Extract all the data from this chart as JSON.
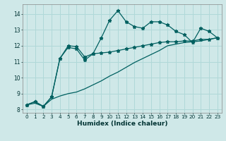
{
  "xlabel": "Humidex (Indice chaleur)",
  "background_color": "#cfe8e8",
  "grid_color": "#b0d8d8",
  "line_color": "#006060",
  "xlim": [
    -0.5,
    23.5
  ],
  "ylim": [
    7.8,
    14.6
  ],
  "xticks": [
    0,
    1,
    2,
    3,
    4,
    5,
    6,
    7,
    8,
    9,
    10,
    11,
    12,
    13,
    14,
    15,
    16,
    17,
    18,
    19,
    20,
    21,
    22,
    23
  ],
  "yticks": [
    8,
    9,
    10,
    11,
    12,
    13,
    14
  ],
  "line1_x": [
    0,
    1,
    2,
    3,
    4,
    5,
    6,
    7,
    8,
    9,
    10,
    11,
    12,
    13,
    14,
    15,
    16,
    17,
    18,
    19,
    20,
    21,
    22,
    23
  ],
  "line1_y": [
    8.3,
    8.5,
    8.2,
    8.8,
    11.2,
    11.9,
    11.8,
    11.1,
    11.5,
    12.5,
    13.6,
    14.2,
    13.5,
    13.2,
    13.1,
    13.5,
    13.5,
    13.3,
    12.9,
    12.7,
    12.2,
    13.1,
    12.9,
    12.5
  ],
  "line2_x": [
    0,
    1,
    2,
    3,
    4,
    5,
    6,
    7,
    8,
    9,
    10,
    11,
    12,
    13,
    14,
    15,
    16,
    17,
    18,
    19,
    20,
    21,
    22,
    23
  ],
  "line2_y": [
    8.3,
    8.5,
    8.2,
    8.8,
    11.2,
    12.0,
    11.95,
    11.3,
    11.5,
    11.55,
    11.6,
    11.7,
    11.8,
    11.9,
    12.0,
    12.1,
    12.2,
    12.25,
    12.25,
    12.3,
    12.3,
    12.4,
    12.4,
    12.5
  ],
  "line3_x": [
    0,
    1,
    2,
    3,
    4,
    5,
    6,
    7,
    8,
    9,
    10,
    11,
    12,
    13,
    14,
    15,
    16,
    17,
    18,
    19,
    20,
    21,
    22,
    23
  ],
  "line3_y": [
    8.3,
    8.4,
    8.2,
    8.65,
    8.85,
    9.0,
    9.1,
    9.3,
    9.55,
    9.8,
    10.1,
    10.35,
    10.65,
    10.95,
    11.2,
    11.45,
    11.7,
    12.0,
    12.1,
    12.2,
    12.25,
    12.3,
    12.4,
    12.5
  ]
}
